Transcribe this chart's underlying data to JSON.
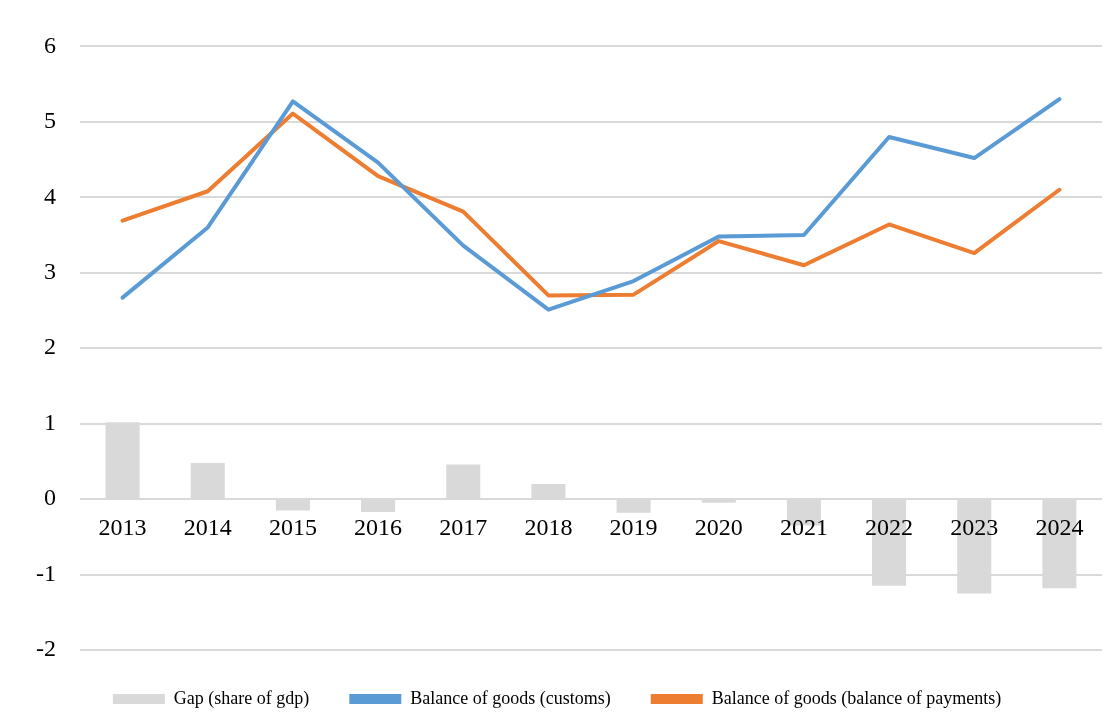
{
  "chart_data": {
    "type": "bar",
    "categories": [
      "2013",
      "2014",
      "2015",
      "2016",
      "2017",
      "2018",
      "2019",
      "2020",
      "2021",
      "2022",
      "2023",
      "2024"
    ],
    "series": [
      {
        "name": "Gap (share of gdp)",
        "color": "#d9d9d9",
        "values": [
          1.02,
          0.48,
          -0.15,
          -0.17,
          0.46,
          0.2,
          -0.18,
          -0.05,
          -0.35,
          -1.15,
          -1.25,
          -1.18
        ]
      },
      {
        "name": "Balance of goods (customs)",
        "type": "line",
        "color": "#5b9bd5",
        "values": [
          2.67,
          3.6,
          5.27,
          4.46,
          3.36,
          2.51,
          2.89,
          3.48,
          3.5,
          4.8,
          4.52,
          5.3
        ]
      },
      {
        "name": "Balance of goods (balance of payments)",
        "type": "line",
        "color": "#ed7d31",
        "values": [
          3.69,
          4.08,
          5.11,
          4.28,
          3.81,
          2.7,
          2.71,
          3.42,
          3.1,
          3.64,
          3.26,
          4.1
        ]
      }
    ],
    "ylim": [
      -2,
      6
    ],
    "yticks": [
      -2,
      -1,
      0,
      1,
      2,
      3,
      4,
      5,
      6
    ],
    "grid": "y",
    "legend": "bottom",
    "marker": "none",
    "line_style": "solid"
  }
}
